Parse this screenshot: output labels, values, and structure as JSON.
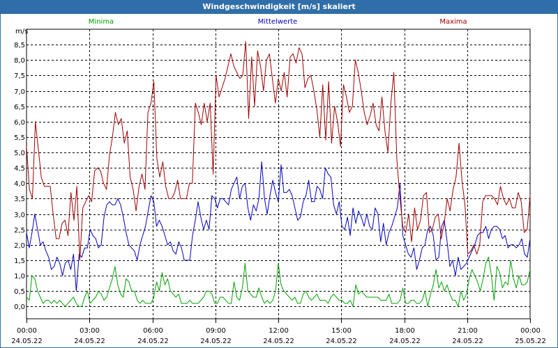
{
  "window": {
    "title": "Windgeschwindigkeit [m/s] skaliert"
  },
  "chart_data": {
    "type": "line",
    "title": "Windgeschwindigkeit [m/s] skaliert",
    "ylabel": "m/s",
    "xlabel": "",
    "ylim": [
      -0.4,
      9.0
    ],
    "xlim": [
      0,
      24
    ],
    "grid": true,
    "y_ticks": [
      "0,0",
      "0,5",
      "1,0",
      "1,5",
      "2,0",
      "2,5",
      "3,0",
      "3,5",
      "4,0",
      "4,5",
      "5,0",
      "5,5",
      "6,0",
      "6,5",
      "7,0",
      "7,5",
      "8,0",
      "8,5"
    ],
    "x_ticks": [
      {
        "time": "00:00",
        "date": "24.05.22"
      },
      {
        "time": "03:00",
        "date": "24.05.22"
      },
      {
        "time": "06:00",
        "date": "24.05.22"
      },
      {
        "time": "09:00",
        "date": "24.05.22"
      },
      {
        "time": "12:00",
        "date": "24.05.22"
      },
      {
        "time": "15:00",
        "date": "24.05.22"
      },
      {
        "time": "18:00",
        "date": "24.05.22"
      },
      {
        "time": "21:00",
        "date": "24.05.22"
      },
      {
        "time": "00:00",
        "date": "25.05.22"
      }
    ],
    "legend_placement": "top",
    "series": [
      {
        "name": "Minima",
        "color": "#00a000",
        "values": [
          0.3,
          0.2,
          1.0,
          0.9,
          0.5,
          0.3,
          0.1,
          0.2,
          0.2,
          0.1,
          0.2,
          0.1,
          0.2,
          0.1,
          0.0,
          0.1,
          0.2,
          0.3,
          0.1,
          0.0,
          0.0,
          0.3,
          0.5,
          0.1,
          0.2,
          0.3,
          0.5,
          0.4,
          0.2,
          0.3,
          0.6,
          0.9,
          1.3,
          0.7,
          0.4,
          0.3,
          0.9,
          0.8,
          0.5,
          0.5,
          0.2,
          0.1,
          0.2,
          0.1,
          0.1,
          0.1,
          0.3,
          0.8,
          0.5,
          1.1,
          0.7,
          0.9,
          0.5,
          0.4,
          0.3,
          0.4,
          0.1,
          0.1,
          0.1,
          0.2,
          0.1,
          0.1,
          0.1,
          0.2,
          0.3,
          0.5,
          0.5,
          0.4,
          0.1,
          0.1,
          0.3,
          0.3,
          0.2,
          0.1,
          0.1,
          0.8,
          0.3,
          0.2,
          0.6,
          1.4,
          0.5,
          0.4,
          0.3,
          0.3,
          0.6,
          0.3,
          0.1,
          0.2,
          0.1,
          0.2,
          0.5,
          1.4,
          0.7,
          0.5,
          0.4,
          0.3,
          0.2,
          0.3,
          0.1,
          0.1,
          0.4,
          0.5,
          0.3,
          0.2,
          0.3,
          0.4,
          0.2,
          0.2,
          0.2,
          0.1,
          0.3,
          0.4,
          0.3,
          0.2,
          0.2,
          0.1,
          0.1,
          0.2,
          0.0,
          0.7,
          0.4,
          0.5,
          0.4,
          0.3,
          0.3,
          0.3,
          0.3,
          0.3,
          0.2,
          0.2,
          0.2,
          0.4,
          0.1,
          0.1,
          0.1,
          0.2,
          0.6,
          0.1,
          0.1,
          0.2,
          0.2,
          0.1,
          0.1,
          0.2,
          0.5,
          0.0,
          0.4,
          0.7,
          1.2,
          0.6,
          0.8,
          0.5,
          0.7,
          0.4,
          0.2,
          0.2,
          0.0,
          0.5,
          0.2,
          0.4,
          0.9,
          1.2,
          1.0,
          0.8,
          0.5,
          0.9,
          1.4,
          1.6,
          1.0,
          0.2,
          1.3,
          1.1,
          0.6,
          0.8,
          0.7,
          1.5,
          0.9,
          0.6,
          1.0,
          0.7,
          0.7,
          0.8,
          1.2
        ]
      },
      {
        "name": "Mittelwerte",
        "color": "#0000c0",
        "values": [
          2.4,
          1.9,
          2.4,
          3.0,
          2.5,
          2.0,
          2.1,
          1.8,
          1.6,
          1.2,
          1.3,
          1.6,
          1.4,
          1.0,
          1.4,
          1.5,
          1.2,
          1.7,
          0.5,
          1.7,
          1.6,
          1.9,
          1.9,
          2.5,
          2.3,
          2.2,
          1.9,
          2.0,
          2.9,
          3.3,
          3.4,
          3.3,
          3.3,
          3.5,
          3.3,
          2.9,
          2.4,
          2.0,
          1.9,
          1.8,
          1.5,
          2.0,
          2.3,
          2.6,
          3.1,
          3.6,
          3.4,
          2.6,
          2.8,
          2.6,
          2.3,
          2.0,
          2.1,
          1.8,
          1.7,
          2.1,
          1.9,
          1.5,
          1.5,
          1.5,
          2.3,
          2.8,
          3.4,
          2.9,
          2.5,
          2.8,
          2.5,
          3.6,
          3.5,
          3.2,
          3.5,
          3.5,
          3.4,
          3.3,
          3.8,
          4.0,
          4.2,
          3.5,
          3.9,
          4.0,
          3.2,
          2.8,
          3.3,
          3.1,
          3.5,
          4.7,
          3.5,
          3.0,
          3.6,
          4.1,
          3.7,
          3.4,
          4.6,
          3.7,
          3.7,
          3.8,
          3.6,
          3.2,
          2.8,
          2.9,
          3.4,
          3.6,
          4.1,
          3.4,
          3.4,
          3.9,
          3.8,
          3.5,
          4.5,
          4.3,
          4.2,
          3.3,
          3.0,
          3.4,
          2.6,
          2.5,
          2.9,
          2.3,
          3.2,
          2.7,
          3.1,
          2.9,
          2.6,
          3.0,
          2.6,
          2.5,
          3.2,
          3.0,
          2.1,
          2.7,
          2.0,
          2.4,
          2.6,
          2.9,
          3.2,
          4.0,
          2.3,
          2.0,
          1.7,
          1.6,
          1.9,
          1.2,
          1.5,
          1.9,
          2.0,
          2.5,
          2.6,
          2.3,
          1.5,
          1.6,
          2.6,
          2.8,
          2.1,
          1.3,
          1.5,
          1.0,
          1.6,
          1.2,
          1.3,
          1.4,
          1.6,
          1.8,
          2.0,
          2.3,
          2.4,
          2.4,
          2.6,
          2.2,
          2.5,
          2.6,
          2.6,
          2.5,
          2.2,
          2.3,
          1.9,
          2.0,
          2.0,
          1.9,
          2.0,
          2.2,
          1.7,
          1.6,
          2.2
        ]
      },
      {
        "name": "Maxima",
        "color": "#a00000",
        "values": [
          5.2,
          3.8,
          3.5,
          6.0,
          5.1,
          4.2,
          3.9,
          3.9,
          3.9,
          3.0,
          2.2,
          2.2,
          2.7,
          2.8,
          2.3,
          3.7,
          2.8,
          3.9,
          1.5,
          3.2,
          3.4,
          3.6,
          3.4,
          4.4,
          4.5,
          4.4,
          4.0,
          3.8,
          4.9,
          5.5,
          6.3,
          5.9,
          6.1,
          5.3,
          5.7,
          4.2,
          3.8,
          3.1,
          3.9,
          4.3,
          3.8,
          6.3,
          6.6,
          7.3,
          4.8,
          4.2,
          4.7,
          3.9,
          3.5,
          3.5,
          3.7,
          4.1,
          3.5,
          3.5,
          3.5,
          4.0,
          4.0,
          6.6,
          6.3,
          5.9,
          6.6,
          6.0,
          6.6,
          4.3,
          7.5,
          6.8,
          7.1,
          7.4,
          7.8,
          8.2,
          7.8,
          7.6,
          7.4,
          7.5,
          8.6,
          6.1,
          8.1,
          6.5,
          8.3,
          7.8,
          7.0,
          8.0,
          8.2,
          7.4,
          6.6,
          7.4,
          7.0,
          7.6,
          6.8,
          8.1,
          8.2,
          7.9,
          8.4,
          8.2,
          7.1,
          7.4,
          7.5,
          7.0,
          6.4,
          5.5,
          7.2,
          5.4,
          7.3,
          5.3,
          6.5,
          6.0,
          5.2,
          7.2,
          6.8,
          6.3,
          6.5,
          8.0,
          7.6,
          7.0,
          6.3,
          5.9,
          6.2,
          6.6,
          5.9,
          5.7,
          6.8,
          5.7,
          5.0,
          6.6,
          7.6,
          4.8,
          3.6,
          2.6,
          2.4,
          3.0,
          2.1,
          3.2,
          2.5,
          2.8,
          3.6,
          3.7,
          2.4,
          2.5,
          2.9,
          3.0,
          2.2,
          2.7,
          3.5,
          3.1,
          3.8,
          4.2,
          5.3,
          4.1,
          3.3,
          1.7,
          1.8,
          2.0,
          1.7,
          2.0,
          3.4,
          3.6,
          3.6,
          3.6,
          3.5,
          3.3,
          3.9,
          3.5,
          3.3,
          3.5,
          3.2,
          3.2,
          3.7,
          3.4,
          2.4,
          2.5,
          3.6
        ]
      }
    ]
  }
}
